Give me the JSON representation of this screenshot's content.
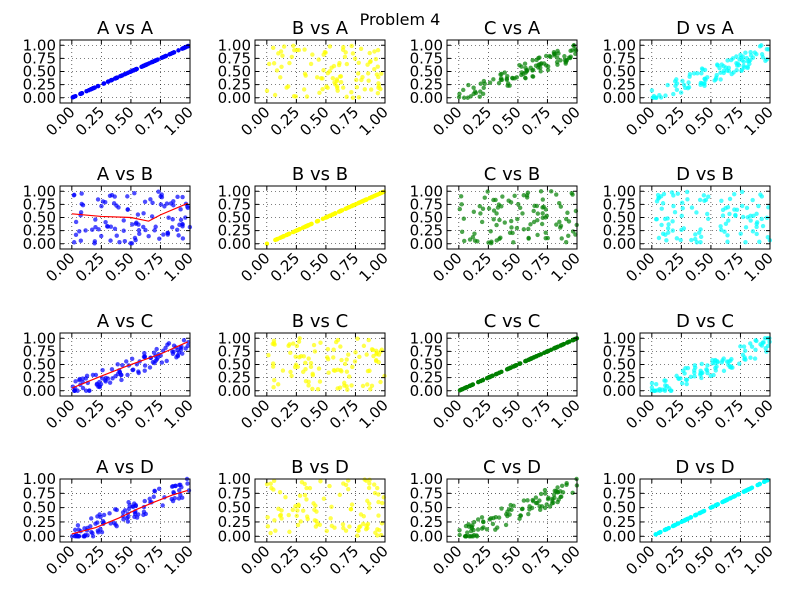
{
  "figure": {
    "title": "Problem 4"
  },
  "colors": {
    "A": "#0000ff",
    "B": "#ffff00",
    "C": "#007f00",
    "D": "#00ffff",
    "fit": "#ff0000"
  },
  "chart_data": [
    {
      "type": "scatter",
      "title": "A vs A",
      "color": "#0000ff",
      "xlim": [
        -0.1,
        1.0
      ],
      "ylim": [
        -0.1,
        1.1
      ],
      "xticks": [
        "0.00",
        "0.25",
        "0.50",
        "0.75",
        "1.00"
      ],
      "yticks": [
        "0.00",
        "0.25",
        "0.50",
        "0.75",
        "1.00"
      ],
      "grid": true,
      "relation": "identity",
      "points": []
    },
    {
      "type": "scatter",
      "title": "B vs A",
      "color": "#ffff00",
      "xlim": [
        -0.1,
        1.0
      ],
      "ylim": [
        -0.1,
        1.1
      ],
      "xticks": [
        "0.00",
        "0.25",
        "0.50",
        "0.75",
        "1.00"
      ],
      "yticks": [
        "0.00",
        "0.25",
        "0.50",
        "0.75",
        "1.00"
      ],
      "grid": true,
      "relation": "random",
      "points": []
    },
    {
      "type": "scatter",
      "title": "C vs A",
      "color": "#007f00",
      "xlim": [
        -0.1,
        1.0
      ],
      "ylim": [
        -0.1,
        1.1
      ],
      "xticks": [
        "0.00",
        "0.25",
        "0.50",
        "0.75",
        "1.00"
      ],
      "yticks": [
        "0.00",
        "0.25",
        "0.50",
        "0.75",
        "1.00"
      ],
      "grid": true,
      "relation": "correlated",
      "points": []
    },
    {
      "type": "scatter",
      "title": "D vs A",
      "color": "#00ffff",
      "xlim": [
        -0.1,
        1.0
      ],
      "ylim": [
        -0.1,
        1.1
      ],
      "xticks": [
        "0.00",
        "0.25",
        "0.50",
        "0.75",
        "1.00"
      ],
      "yticks": [
        "0.00",
        "0.25",
        "0.50",
        "0.75",
        "1.00"
      ],
      "grid": true,
      "relation": "correlated",
      "points": []
    },
    {
      "type": "scatter",
      "title": "A vs B",
      "color": "#0000ff",
      "xlim": [
        -0.1,
        1.0
      ],
      "ylim": [
        -0.1,
        1.1
      ],
      "xticks": [
        "0.00",
        "0.25",
        "0.50",
        "0.75",
        "1.00"
      ],
      "yticks": [
        "0.00",
        "0.25",
        "0.50",
        "0.75",
        "1.00"
      ],
      "grid": true,
      "relation": "random",
      "points": [],
      "fit_line": [
        [
          0.0,
          0.57
        ],
        [
          0.25,
          0.52
        ],
        [
          0.5,
          0.5
        ],
        [
          0.65,
          0.43
        ],
        [
          0.75,
          0.55
        ],
        [
          0.98,
          0.77
        ]
      ]
    },
    {
      "type": "scatter",
      "title": "B vs B",
      "color": "#ffff00",
      "xlim": [
        -0.1,
        1.0
      ],
      "ylim": [
        -0.1,
        1.1
      ],
      "xticks": [
        "0.00",
        "0.25",
        "0.50",
        "0.75",
        "1.00"
      ],
      "yticks": [
        "0.00",
        "0.25",
        "0.50",
        "0.75",
        "1.00"
      ],
      "grid": true,
      "relation": "identity",
      "points": []
    },
    {
      "type": "scatter",
      "title": "C vs B",
      "color": "#007f00",
      "xlim": [
        -0.1,
        1.0
      ],
      "ylim": [
        -0.1,
        1.1
      ],
      "xticks": [
        "0.00",
        "0.25",
        "0.50",
        "0.75",
        "1.00"
      ],
      "yticks": [
        "0.00",
        "0.25",
        "0.50",
        "0.75",
        "1.00"
      ],
      "grid": true,
      "relation": "random",
      "points": []
    },
    {
      "type": "scatter",
      "title": "D vs B",
      "color": "#00ffff",
      "xlim": [
        -0.1,
        1.0
      ],
      "ylim": [
        -0.1,
        1.1
      ],
      "xticks": [
        "0.00",
        "0.25",
        "0.50",
        "0.75",
        "1.00"
      ],
      "yticks": [
        "0.00",
        "0.25",
        "0.50",
        "0.75",
        "1.00"
      ],
      "grid": true,
      "relation": "random",
      "points": []
    },
    {
      "type": "scatter",
      "title": "A vs C",
      "color": "#0000ff",
      "xlim": [
        -0.1,
        1.0
      ],
      "ylim": [
        -0.1,
        1.1
      ],
      "xticks": [
        "0.00",
        "0.25",
        "0.50",
        "0.75",
        "1.00"
      ],
      "yticks": [
        "0.00",
        "0.25",
        "0.50",
        "0.75",
        "1.00"
      ],
      "grid": true,
      "relation": "correlated",
      "points": [],
      "fit_line": [
        [
          0.0,
          0.05
        ],
        [
          0.25,
          0.28
        ],
        [
          0.5,
          0.5
        ],
        [
          0.75,
          0.7
        ],
        [
          0.98,
          0.93
        ]
      ]
    },
    {
      "type": "scatter",
      "title": "B vs C",
      "color": "#ffff00",
      "xlim": [
        -0.1,
        1.0
      ],
      "ylim": [
        -0.1,
        1.1
      ],
      "xticks": [
        "0.00",
        "0.25",
        "0.50",
        "0.75",
        "1.00"
      ],
      "yticks": [
        "0.00",
        "0.25",
        "0.50",
        "0.75",
        "1.00"
      ],
      "grid": true,
      "relation": "random",
      "points": []
    },
    {
      "type": "scatter",
      "title": "C vs C",
      "color": "#007f00",
      "xlim": [
        -0.1,
        1.0
      ],
      "ylim": [
        -0.1,
        1.1
      ],
      "xticks": [
        "0.00",
        "0.25",
        "0.50",
        "0.75",
        "1.00"
      ],
      "yticks": [
        "0.00",
        "0.25",
        "0.50",
        "0.75",
        "1.00"
      ],
      "grid": true,
      "relation": "identity",
      "points": []
    },
    {
      "type": "scatter",
      "title": "D vs C",
      "color": "#00ffff",
      "xlim": [
        -0.1,
        1.0
      ],
      "ylim": [
        -0.1,
        1.1
      ],
      "xticks": [
        "0.00",
        "0.25",
        "0.50",
        "0.75",
        "1.00"
      ],
      "yticks": [
        "0.00",
        "0.25",
        "0.50",
        "0.75",
        "1.00"
      ],
      "grid": true,
      "relation": "correlated",
      "points": []
    },
    {
      "type": "scatter",
      "title": "A vs D",
      "color": "#0000ff",
      "xlim": [
        -0.1,
        1.0
      ],
      "ylim": [
        -0.1,
        1.0
      ],
      "xticks": [
        "0.00",
        "0.25",
        "0.50",
        "0.75",
        "1.00"
      ],
      "yticks": [
        "0.00",
        "0.25",
        "0.50",
        "0.75",
        "1.00"
      ],
      "grid": true,
      "relation": "correlated",
      "points": [],
      "fit_line": [
        [
          0.0,
          0.04
        ],
        [
          0.2,
          0.15
        ],
        [
          0.4,
          0.32
        ],
        [
          0.55,
          0.47
        ],
        [
          0.7,
          0.6
        ],
        [
          0.85,
          0.72
        ],
        [
          0.98,
          0.8
        ]
      ]
    },
    {
      "type": "scatter",
      "title": "B vs D",
      "color": "#ffff00",
      "xlim": [
        -0.1,
        1.0
      ],
      "ylim": [
        -0.1,
        1.0
      ],
      "xticks": [
        "0.00",
        "0.25",
        "0.50",
        "0.75",
        "1.00"
      ],
      "yticks": [
        "0.00",
        "0.25",
        "0.50",
        "0.75",
        "1.00"
      ],
      "grid": true,
      "relation": "random",
      "points": []
    },
    {
      "type": "scatter",
      "title": "C vs D",
      "color": "#007f00",
      "xlim": [
        -0.1,
        1.0
      ],
      "ylim": [
        -0.1,
        1.0
      ],
      "xticks": [
        "0.00",
        "0.25",
        "0.50",
        "0.75",
        "1.00"
      ],
      "yticks": [
        "0.00",
        "0.25",
        "0.50",
        "0.75",
        "1.00"
      ],
      "grid": true,
      "relation": "correlated",
      "points": []
    },
    {
      "type": "scatter",
      "title": "D vs D",
      "color": "#00ffff",
      "xlim": [
        -0.1,
        1.0
      ],
      "ylim": [
        -0.1,
        1.0
      ],
      "xticks": [
        "0.00",
        "0.25",
        "0.50",
        "0.75",
        "1.00"
      ],
      "yticks": [
        "0.00",
        "0.25",
        "0.50",
        "0.75",
        "1.00"
      ],
      "grid": true,
      "relation": "identity",
      "points": []
    }
  ]
}
